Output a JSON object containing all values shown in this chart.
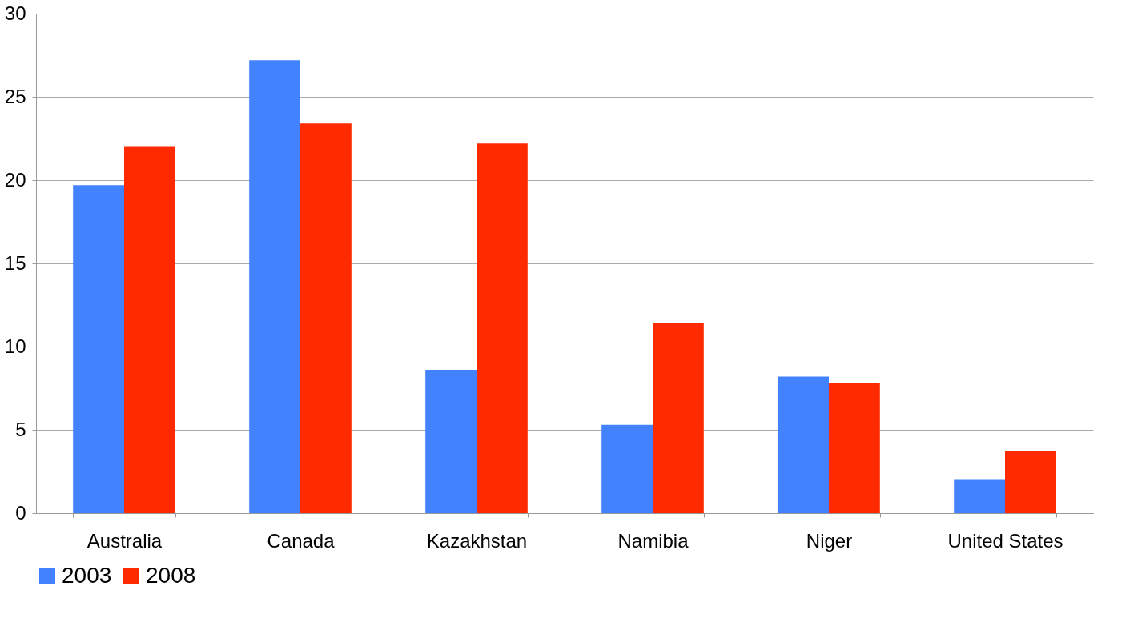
{
  "chart_data": {
    "type": "bar",
    "categories": [
      "Australia",
      "Canada",
      "Kazakhstan",
      "Namibia",
      "Niger",
      "United States"
    ],
    "series": [
      {
        "name": "2003",
        "color": "#4282ff",
        "values": [
          19.7,
          27.2,
          8.6,
          5.3,
          8.2,
          2.0
        ]
      },
      {
        "name": "2008",
        "color": "#ff2a00",
        "values": [
          22.0,
          23.4,
          22.2,
          11.4,
          7.8,
          3.7
        ]
      }
    ],
    "ylim": [
      0,
      30
    ],
    "yticks": [
      0,
      5,
      10,
      15,
      20,
      25,
      30
    ],
    "grid": "y",
    "legend": "bottom"
  }
}
